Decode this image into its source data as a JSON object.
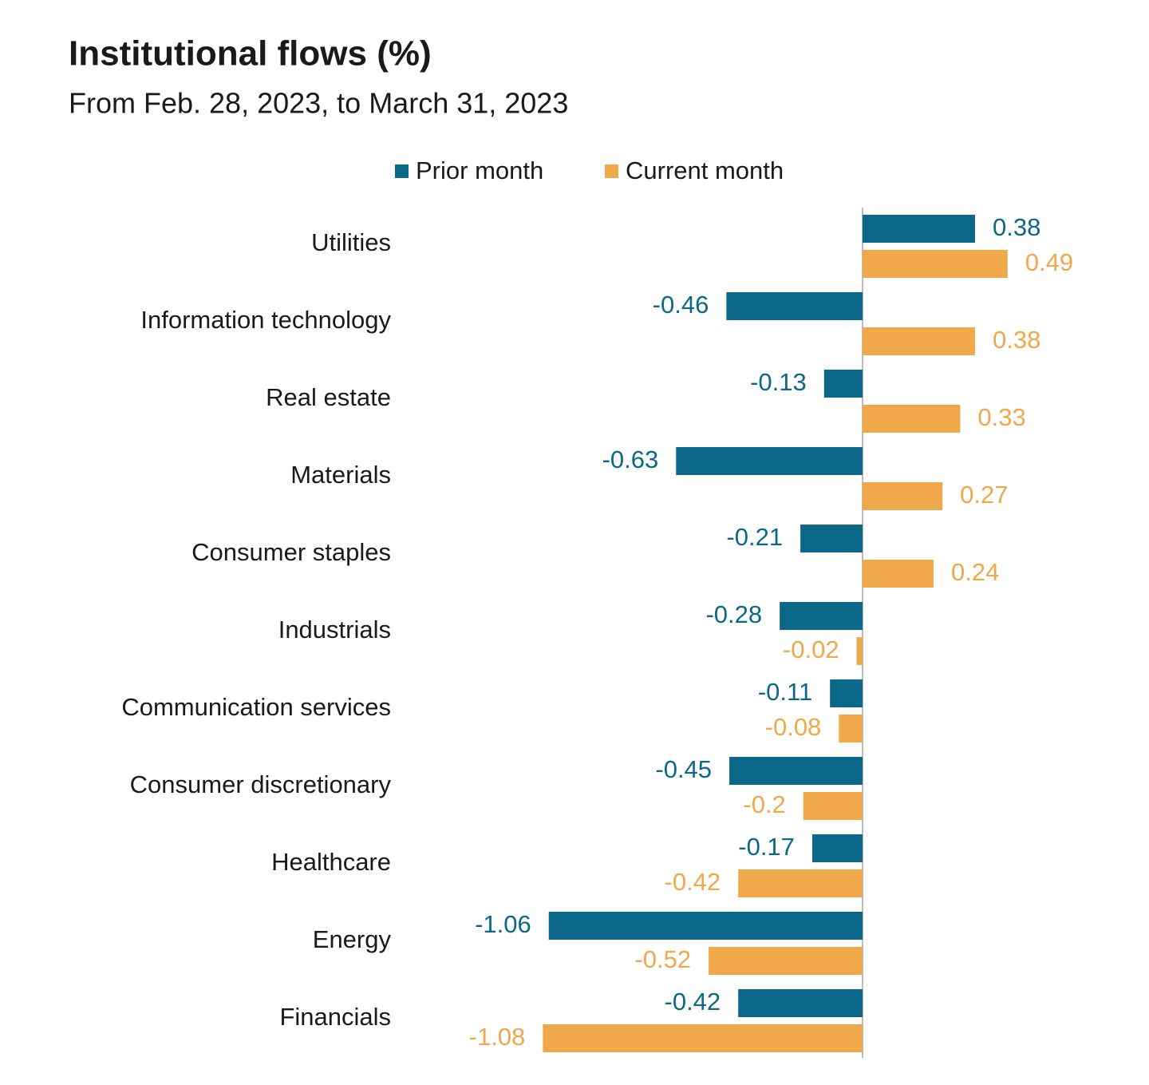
{
  "chart_data": {
    "type": "bar",
    "orientation": "horizontal",
    "title": "Institutional flows (%)",
    "subtitle": "From Feb. 28, 2023, to March 31, 2023",
    "categories": [
      "Utilities",
      "Information technology",
      "Real estate",
      "Materials",
      "Consumer staples",
      "Industrials",
      "Communication services",
      "Consumer discretionary",
      "Healthcare",
      "Energy",
      "Financials"
    ],
    "series": [
      {
        "name": "Prior month",
        "color": "#0b6888",
        "values": [
          0.38,
          -0.46,
          -0.13,
          -0.63,
          -0.21,
          -0.28,
          -0.11,
          -0.45,
          -0.17,
          -1.06,
          -0.42
        ]
      },
      {
        "name": "Current month",
        "color": "#f0a84b",
        "values": [
          0.49,
          0.38,
          0.33,
          0.27,
          0.24,
          -0.02,
          -0.08,
          -0.2,
          -0.42,
          -0.52,
          -1.08
        ]
      }
    ]
  }
}
